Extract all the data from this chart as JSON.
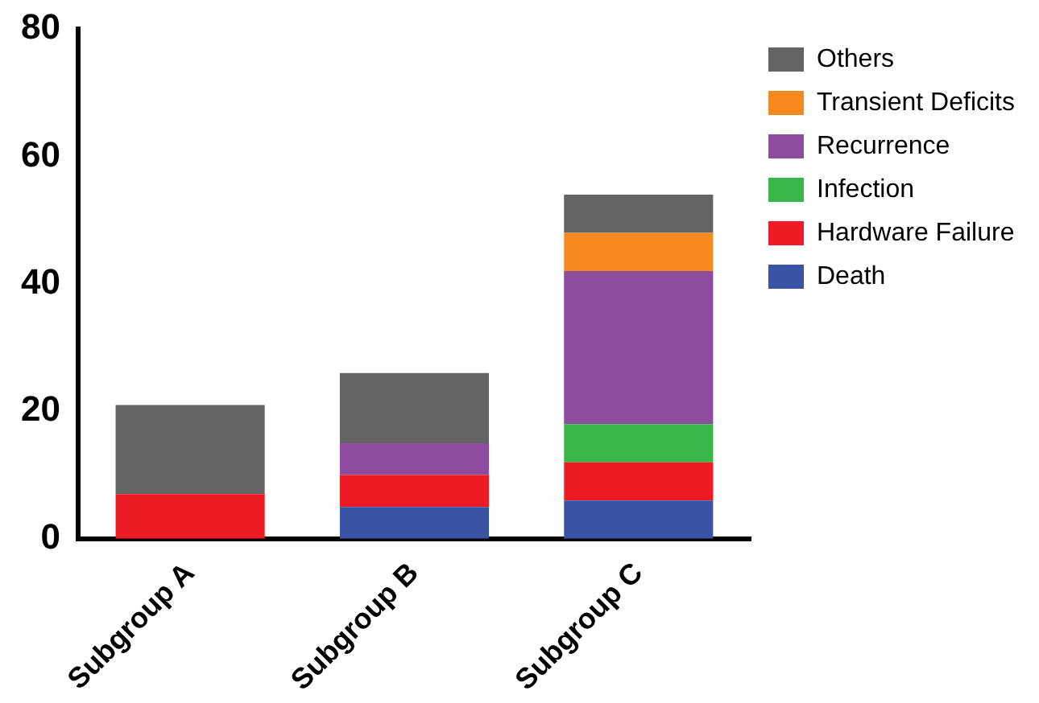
{
  "chart_data": {
    "type": "bar",
    "stacked": true,
    "categories": [
      "Subgroup A",
      "Subgroup B",
      "Subgroup C"
    ],
    "series": [
      {
        "name": "Death",
        "color": "#3a53a4",
        "values": [
          0,
          5,
          6
        ]
      },
      {
        "name": "Hardware Failure",
        "color": "#ed1c24",
        "values": [
          7,
          5,
          6
        ]
      },
      {
        "name": "Infection",
        "color": "#39b54a",
        "values": [
          0,
          0,
          6
        ]
      },
      {
        "name": "Recurrence",
        "color": "#8e4c9e",
        "values": [
          0,
          5,
          24
        ]
      },
      {
        "name": "Transient Deficits",
        "color": "#f7891f",
        "values": [
          0,
          0,
          6
        ]
      },
      {
        "name": "Others",
        "color": "#646464",
        "values": [
          14,
          11,
          6
        ]
      }
    ],
    "ylim": [
      0,
      80
    ],
    "yticks": [
      0,
      20,
      40,
      60,
      80
    ],
    "grid": false,
    "legend": "right"
  }
}
